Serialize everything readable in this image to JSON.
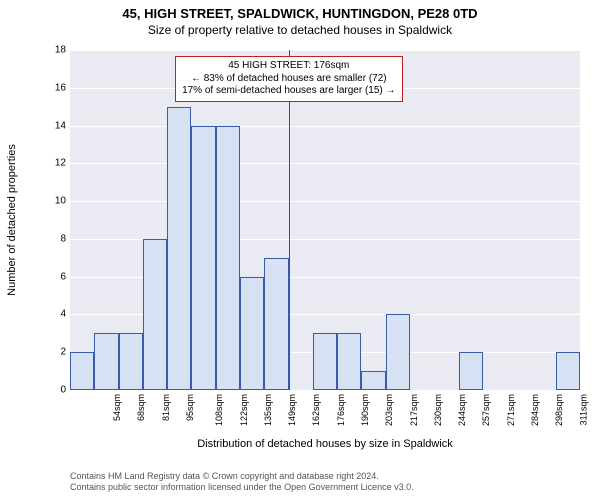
{
  "title": "45, HIGH STREET, SPALDWICK, HUNTINGDON, PE28 0TD",
  "subtitle": "Size of property relative to detached houses in Spaldwick",
  "y_axis_label": "Number of detached properties",
  "x_axis_label": "Distribution of detached houses by size in Spaldwick",
  "chart": {
    "type": "histogram",
    "background_color": "#eaeaf2",
    "grid_color": "#ffffff",
    "bar_color": "#d6e1f3",
    "bar_border_color": "#3a5ca8",
    "ref_line_color": "#c02020",
    "ylim": [
      0,
      18
    ],
    "ytick_step": 2,
    "bins": [
      {
        "label": "54sqm",
        "value": 2
      },
      {
        "label": "68sqm",
        "value": 3
      },
      {
        "label": "81sqm",
        "value": 3
      },
      {
        "label": "95sqm",
        "value": 8
      },
      {
        "label": "108sqm",
        "value": 15
      },
      {
        "label": "122sqm",
        "value": 14
      },
      {
        "label": "135sqm",
        "value": 14
      },
      {
        "label": "149sqm",
        "value": 6
      },
      {
        "label": "162sqm",
        "value": 7
      },
      {
        "label": "176sqm",
        "value": 0
      },
      {
        "label": "190sqm",
        "value": 3
      },
      {
        "label": "203sqm",
        "value": 3
      },
      {
        "label": "217sqm",
        "value": 1
      },
      {
        "label": "230sqm",
        "value": 4
      },
      {
        "label": "244sqm",
        "value": 0
      },
      {
        "label": "257sqm",
        "value": 0
      },
      {
        "label": "271sqm",
        "value": 2
      },
      {
        "label": "284sqm",
        "value": 0
      },
      {
        "label": "298sqm",
        "value": 0
      },
      {
        "label": "311sqm",
        "value": 0
      },
      {
        "label": "325sqm",
        "value": 2
      }
    ],
    "reference_x_index": 9,
    "annotation": {
      "line1": "45 HIGH STREET: 176sqm",
      "line2": "← 83% of detached houses are smaller (72)",
      "line3": "17% of semi-detached houses are larger (15) →"
    }
  },
  "attribution": {
    "line1": "Contains HM Land Registry data © Crown copyright and database right 2024.",
    "line2": "Contains public sector information licensed under the Open Government Licence v3.0."
  }
}
